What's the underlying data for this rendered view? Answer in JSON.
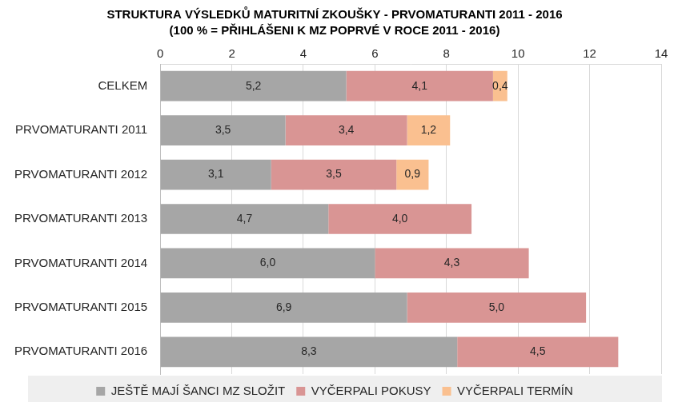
{
  "chart_data": {
    "type": "bar",
    "title": "STRUKTURA VÝSLEDKŮ MATURITNÍ ZKOUŠKY - PRVOMATURANTI 2011 - 2016",
    "subtitle": "(100 % = PŘIHLÁŠENI K MZ POPRVÉ V ROCE 2011 - 2016)",
    "orientation": "horizontal",
    "stacked": true,
    "grid": true,
    "legend": "bottom",
    "data_labels": true,
    "categories": [
      "CELKEM",
      "PRVOMATURANTI 2011",
      "PRVOMATURANTI 2012",
      "PRVOMATURANTI 2013",
      "PRVOMATURANTI 2014",
      "PRVOMATURANTI 2015",
      "PRVOMATURANTI 2016"
    ],
    "series": [
      {
        "name": "JEŠTĚ MAJÍ ŠANCI MZ SLOŽIT",
        "color": "#a6a6a6",
        "values": [
          5.2,
          3.5,
          3.1,
          4.7,
          6.0,
          6.9,
          8.3
        ],
        "value_labels": [
          "5,2",
          "3,5",
          "3,1",
          "4,7",
          "6,0",
          "6,9",
          "8,3"
        ]
      },
      {
        "name": "VYČERPALI POKUSY",
        "color": "#d99594",
        "values": [
          4.1,
          3.4,
          3.5,
          4.0,
          4.3,
          5.0,
          4.5
        ],
        "value_labels": [
          "4,1",
          "3,4",
          "3,5",
          "4,0",
          "4,3",
          "5,0",
          "4,5"
        ]
      },
      {
        "name": "VYČERPALI TERMÍN",
        "color": "#fac090",
        "values": [
          0.4,
          1.2,
          0.9,
          null,
          null,
          null,
          null
        ],
        "value_labels": [
          "0,4",
          "1,2",
          "0,9",
          null,
          null,
          null,
          null
        ]
      }
    ],
    "xlim": [
      0,
      14
    ],
    "xticks": [
      0,
      2,
      4,
      6,
      8,
      10,
      12,
      14
    ]
  }
}
